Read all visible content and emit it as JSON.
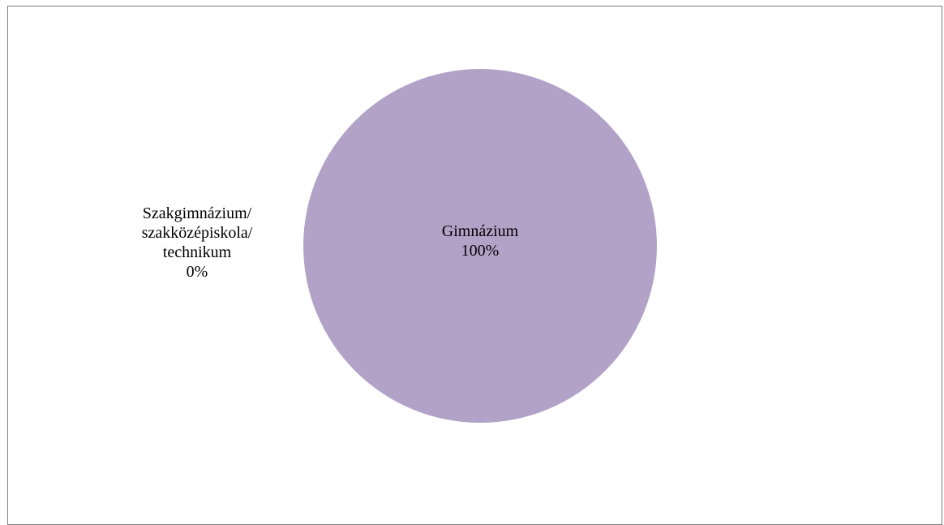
{
  "chart_data": {
    "type": "pie",
    "title": "",
    "slices": [
      {
        "label": [
          "Gimnázium"
        ],
        "value": 100,
        "display": "100%",
        "color": "#b3a2c7"
      },
      {
        "label": [
          "Szakgimnázium/",
          "szakközépiskola/",
          "technikum"
        ],
        "value": 0,
        "display": "0%",
        "color": "#c9c0d9"
      }
    ],
    "legend": "none"
  }
}
